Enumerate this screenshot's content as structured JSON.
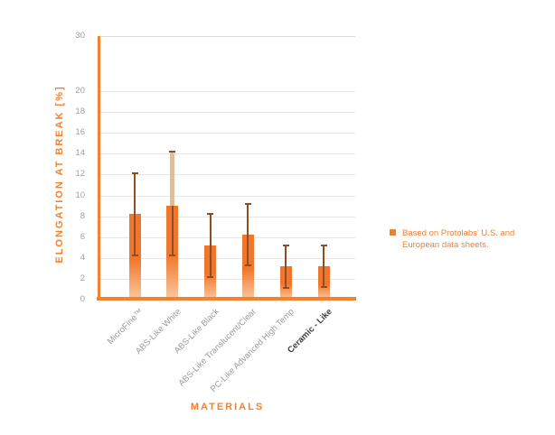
{
  "figure": {
    "background": "#ffffff"
  },
  "y_axis": {
    "title": "ELONGATION AT BREAK [%]",
    "tick_labels": [
      "30",
      "20",
      "18",
      "16",
      "14",
      "12",
      "10",
      "8",
      "6",
      "4",
      "2",
      "0"
    ]
  },
  "x_axis": {
    "title": "MATERIALS"
  },
  "legend": {
    "lines": [
      "Based on Protolabs’ U.S. and",
      "European data sheets."
    ],
    "swatch": "orange-square"
  },
  "colors": {
    "accent_orange": "#f5802e",
    "bar_top": "#f0752d",
    "bar_bottom": "#f9c9a2",
    "whisker_dark": "#8f4d20",
    "whisker_tan": "#dbbf9f",
    "gridline": "#e6e6e6",
    "tick_text": "#9da0a3",
    "category_text": "#9b9b9b",
    "emphasized_category_text": "#3c3c3c",
    "legend_orange": "#ee8133"
  },
  "chart_data": {
    "type": "bar",
    "title": "",
    "xlabel": "MATERIALS",
    "ylabel": "ELONGATION AT BREAK [%]",
    "categories": [
      "MicroFine™",
      "ABS-Like White",
      "ABS-Like Black",
      "ABS-Like Translucent/Clear",
      "PC-Like Advanced High Temp",
      "Ceramic - Like"
    ],
    "values": [
      8.2,
      9.0,
      5.2,
      6.2,
      3.2,
      3.2
    ],
    "error_low": [
      4.2,
      4.2,
      2.2,
      3.3,
      1.1,
      1.2
    ],
    "error_high": [
      12.1,
      14.2,
      8.2,
      9.2,
      5.2,
      5.2
    ],
    "upper_whisker_style": [
      "dark",
      "tan-wide",
      "dark",
      "dark",
      "dark",
      "dark"
    ],
    "emphasized_category": "Ceramic - Like",
    "y_ticks": [
      0,
      2,
      4,
      6,
      8,
      10,
      12,
      14,
      16,
      18,
      20,
      30
    ],
    "ylim": [
      0,
      30
    ],
    "axis_break": {
      "after": 20,
      "compressed_top_tick": 30
    },
    "grid": true,
    "legend": "Based on Protolabs’ U.S. and European data sheets.",
    "legend_position": "right"
  }
}
